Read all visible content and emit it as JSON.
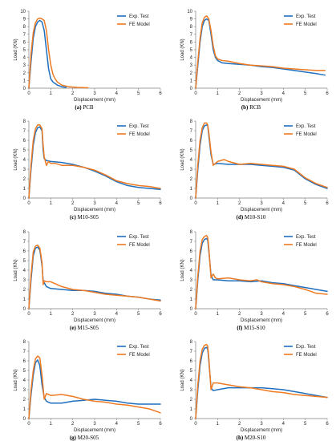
{
  "colors": {
    "exp": "#1f6fbf",
    "fe": "#ee7a22",
    "axis": "#7f7f7f",
    "text": "#222222"
  },
  "chart_data": [
    {
      "type": "line",
      "caption_tag": "(a)",
      "caption_name": "PCB",
      "xlabel": "Displacement (mm)",
      "ylabel": "Load (KN)",
      "xlim": [
        0,
        6
      ],
      "ylim": [
        0,
        10
      ],
      "xticks": [
        0,
        1,
        2,
        3,
        4,
        5,
        6
      ],
      "yticks": [
        0,
        1,
        2,
        3,
        4,
        5,
        6,
        7,
        8,
        9,
        10
      ],
      "legend": "top-right",
      "series": [
        {
          "name": "Exp. Test",
          "x": [
            0,
            0.1,
            0.2,
            0.3,
            0.4,
            0.5,
            0.6,
            0.7,
            0.8,
            0.9,
            1.0,
            1.1,
            1.2,
            1.3,
            1.5,
            1.7
          ],
          "y": [
            0,
            3.5,
            6.5,
            8.0,
            8.6,
            8.8,
            8.6,
            7.5,
            5.0,
            2.5,
            1.2,
            0.8,
            0.6,
            0.4,
            0.2,
            0.1
          ]
        },
        {
          "name": "FE Model",
          "x": [
            0,
            0.1,
            0.2,
            0.3,
            0.4,
            0.5,
            0.6,
            0.7,
            0.8,
            0.9,
            1.0,
            1.1,
            1.2,
            1.3,
            1.5,
            1.8,
            2.2,
            2.7
          ],
          "y": [
            0,
            4.5,
            7.2,
            8.5,
            9.0,
            9.1,
            9.0,
            8.8,
            7.5,
            5.0,
            3.0,
            1.8,
            1.2,
            0.8,
            0.4,
            0.2,
            0.1,
            0.05
          ]
        }
      ]
    },
    {
      "type": "line",
      "caption_tag": "(b)",
      "caption_name": "RCB",
      "xlabel": "Displacement (mm)",
      "ylabel": "Load (KN)",
      "xlim": [
        0,
        6
      ],
      "ylim": [
        0,
        10
      ],
      "xticks": [
        0,
        1,
        2,
        3,
        4,
        5,
        6
      ],
      "yticks": [
        0,
        1,
        2,
        3,
        4,
        5,
        6,
        7,
        8,
        9,
        10
      ],
      "legend": "top-right",
      "series": [
        {
          "name": "Exp. Test",
          "x": [
            0,
            0.1,
            0.2,
            0.3,
            0.4,
            0.5,
            0.6,
            0.7,
            0.8,
            0.9,
            1.0,
            1.2,
            1.5,
            2.0,
            2.5,
            3.0,
            3.5,
            4.0,
            4.5,
            5.0,
            5.5,
            5.9
          ],
          "y": [
            0,
            3.0,
            6.0,
            8.0,
            8.8,
            9.0,
            8.8,
            7.0,
            5.0,
            4.0,
            3.6,
            3.3,
            3.2,
            3.1,
            3.0,
            2.8,
            2.7,
            2.5,
            2.3,
            2.1,
            1.9,
            1.7
          ]
        },
        {
          "name": "FE Model",
          "x": [
            0,
            0.1,
            0.2,
            0.3,
            0.4,
            0.5,
            0.6,
            0.7,
            0.8,
            0.9,
            1.0,
            1.2,
            1.5,
            2.0,
            2.5,
            3.0,
            3.5,
            4.0,
            4.5,
            5.0,
            5.5,
            5.9
          ],
          "y": [
            0,
            3.5,
            6.5,
            8.5,
            9.2,
            9.4,
            9.0,
            7.5,
            5.5,
            4.2,
            3.8,
            3.6,
            3.5,
            3.2,
            3.0,
            2.9,
            2.8,
            2.6,
            2.5,
            2.4,
            2.3,
            2.3
          ]
        }
      ]
    },
    {
      "type": "line",
      "caption_tag": "(c)",
      "caption_name": "M10-S05",
      "xlabel": "Displacement (mm)",
      "ylabel": "Load (KN)",
      "xlim": [
        0,
        6
      ],
      "ylim": [
        0,
        8
      ],
      "xticks": [
        0,
        1,
        2,
        3,
        4,
        5,
        6
      ],
      "yticks": [
        0,
        1,
        2,
        3,
        4,
        5,
        6,
        7,
        8
      ],
      "legend": "top-right",
      "series": [
        {
          "name": "Exp. Test",
          "x": [
            0,
            0.1,
            0.2,
            0.3,
            0.4,
            0.5,
            0.6,
            0.65,
            0.7,
            0.8,
            1.0,
            1.5,
            2.0,
            2.5,
            3.0,
            3.5,
            4.0,
            4.5,
            5.0,
            5.5,
            6.0
          ],
          "y": [
            0,
            3.0,
            5.5,
            6.8,
            7.3,
            7.4,
            7.0,
            5.0,
            4.1,
            3.9,
            3.8,
            3.7,
            3.5,
            3.2,
            2.8,
            2.3,
            1.7,
            1.3,
            1.1,
            1.0,
            0.9
          ]
        },
        {
          "name": "FE Model",
          "x": [
            0,
            0.1,
            0.2,
            0.3,
            0.4,
            0.5,
            0.6,
            0.65,
            0.7,
            0.8,
            0.9,
            1.0,
            1.2,
            1.5,
            2.0,
            2.5,
            3.0,
            3.5,
            4.0,
            4.5,
            5.0,
            5.5,
            6.0
          ],
          "y": [
            0,
            3.5,
            6.0,
            7.2,
            7.6,
            7.6,
            7.2,
            5.5,
            4.3,
            3.4,
            3.8,
            3.6,
            3.6,
            3.4,
            3.4,
            3.2,
            2.9,
            2.4,
            1.8,
            1.5,
            1.3,
            1.2,
            1.0
          ]
        }
      ]
    },
    {
      "type": "line",
      "caption_tag": "(d)",
      "caption_name": "M10-S10",
      "xlabel": "Displacement (mm)",
      "ylabel": "Load (KN)",
      "xlim": [
        0,
        6
      ],
      "ylim": [
        0,
        8
      ],
      "xticks": [
        0,
        1,
        2,
        3,
        4,
        5,
        6
      ],
      "yticks": [
        0,
        1,
        2,
        3,
        4,
        5,
        6,
        7,
        8
      ],
      "legend": "top-right",
      "series": [
        {
          "name": "Exp. Test",
          "x": [
            0,
            0.1,
            0.2,
            0.3,
            0.4,
            0.5,
            0.55,
            0.6,
            0.7,
            0.8,
            1.0,
            1.5,
            2.0,
            2.5,
            3.0,
            3.5,
            4.0,
            4.5,
            5.0,
            5.5,
            6.0
          ],
          "y": [
            0,
            3.0,
            5.5,
            7.0,
            7.5,
            7.6,
            7.5,
            6.5,
            4.5,
            3.5,
            3.6,
            3.5,
            3.5,
            3.5,
            3.4,
            3.3,
            3.2,
            2.9,
            2.0,
            1.4,
            1.0
          ]
        },
        {
          "name": "FE Model",
          "x": [
            0,
            0.1,
            0.2,
            0.3,
            0.4,
            0.5,
            0.55,
            0.6,
            0.7,
            0.8,
            1.0,
            1.3,
            1.5,
            2.0,
            2.5,
            3.0,
            3.5,
            4.0,
            4.5,
            5.0,
            5.5,
            6.0
          ],
          "y": [
            0,
            3.5,
            6.0,
            7.3,
            7.8,
            7.8,
            7.6,
            6.8,
            4.8,
            3.4,
            3.8,
            4.0,
            3.8,
            3.5,
            3.6,
            3.5,
            3.4,
            3.3,
            3.0,
            2.1,
            1.5,
            1.1
          ]
        }
      ]
    },
    {
      "type": "line",
      "caption_tag": "(e)",
      "caption_name": "M15-S05",
      "xlabel": "Displacement (mm)",
      "ylabel": "Load (KN)",
      "xlim": [
        0,
        6
      ],
      "ylim": [
        0,
        8
      ],
      "xticks": [
        0,
        1,
        2,
        3,
        4,
        5,
        6
      ],
      "yticks": [
        0,
        1,
        2,
        3,
        4,
        5,
        6,
        7,
        8
      ],
      "legend": "top-right",
      "series": [
        {
          "name": "Exp. Test",
          "x": [
            0,
            0.1,
            0.2,
            0.3,
            0.4,
            0.5,
            0.6,
            0.65,
            0.7,
            0.8,
            1.0,
            1.5,
            2.0,
            2.5,
            3.0,
            3.5,
            4.0,
            4.5,
            5.0,
            5.5,
            6.0
          ],
          "y": [
            0,
            3.0,
            5.5,
            6.3,
            6.4,
            6.1,
            4.5,
            3.0,
            2.7,
            2.3,
            2.1,
            2.0,
            1.9,
            1.9,
            1.8,
            1.6,
            1.5,
            1.3,
            1.2,
            1.0,
            0.9
          ]
        },
        {
          "name": "FE Model",
          "x": [
            0,
            0.1,
            0.2,
            0.3,
            0.4,
            0.5,
            0.6,
            0.65,
            0.7,
            0.8,
            1.0,
            1.5,
            2.0,
            2.5,
            3.0,
            3.5,
            4.0,
            4.5,
            5.0,
            5.5,
            6.0
          ],
          "y": [
            0,
            3.5,
            5.9,
            6.5,
            6.6,
            6.3,
            4.8,
            2.5,
            2.9,
            2.8,
            2.8,
            2.3,
            2.0,
            1.9,
            1.7,
            1.5,
            1.4,
            1.3,
            1.2,
            1.0,
            0.8
          ]
        }
      ]
    },
    {
      "type": "line",
      "caption_tag": "(f)",
      "caption_name": "M15-S10",
      "xlabel": "Displacement (mm)",
      "ylabel": "Load (KN)",
      "xlim": [
        0,
        6
      ],
      "ylim": [
        0,
        8
      ],
      "xticks": [
        0,
        1,
        2,
        3,
        4,
        5,
        6
      ],
      "yticks": [
        0,
        1,
        2,
        3,
        4,
        5,
        6,
        7,
        8
      ],
      "legend": "top-right",
      "series": [
        {
          "name": "Exp. Test",
          "x": [
            0,
            0.1,
            0.2,
            0.3,
            0.4,
            0.5,
            0.55,
            0.6,
            0.7,
            0.8,
            1.0,
            1.5,
            2.0,
            2.5,
            3.0,
            3.5,
            4.0,
            4.5,
            5.0,
            5.5,
            6.0
          ],
          "y": [
            0,
            3.0,
            5.5,
            6.8,
            7.2,
            7.3,
            7.1,
            6.0,
            3.5,
            3.0,
            3.0,
            2.9,
            2.9,
            2.8,
            2.9,
            2.7,
            2.6,
            2.4,
            2.2,
            2.0,
            1.8
          ]
        },
        {
          "name": "FE Model",
          "x": [
            0,
            0.1,
            0.2,
            0.3,
            0.4,
            0.5,
            0.55,
            0.6,
            0.7,
            0.8,
            0.9,
            1.0,
            1.5,
            2.0,
            2.5,
            2.8,
            3.0,
            3.5,
            4.0,
            4.5,
            5.0,
            5.5,
            6.0
          ],
          "y": [
            0,
            3.4,
            6.0,
            7.2,
            7.5,
            7.6,
            7.4,
            6.3,
            3.2,
            3.6,
            3.2,
            3.1,
            3.2,
            3.0,
            2.9,
            3.0,
            2.8,
            2.6,
            2.5,
            2.3,
            2.0,
            1.6,
            1.5
          ]
        }
      ]
    },
    {
      "type": "line",
      "caption_tag": "(g)",
      "caption_name": "M20-S05",
      "xlabel": "Displacement (mm)",
      "ylabel": "Load (KN)",
      "xlim": [
        0,
        6
      ],
      "ylim": [
        0,
        8
      ],
      "xticks": [
        0,
        1,
        2,
        3,
        4,
        5,
        6
      ],
      "yticks": [
        0,
        1,
        2,
        3,
        4,
        5,
        6,
        7,
        8
      ],
      "legend": "top-right",
      "series": [
        {
          "name": "Exp. Test",
          "x": [
            0,
            0.1,
            0.2,
            0.3,
            0.4,
            0.5,
            0.6,
            0.7,
            0.8,
            1.0,
            1.5,
            2.0,
            2.5,
            3.0,
            3.5,
            4.0,
            4.5,
            5.0,
            5.5,
            6.0
          ],
          "y": [
            0,
            2.5,
            4.5,
            5.8,
            6.1,
            5.5,
            3.5,
            2.2,
            1.8,
            1.6,
            1.6,
            1.8,
            1.9,
            2.0,
            1.9,
            1.8,
            1.6,
            1.5,
            1.5,
            1.5
          ]
        },
        {
          "name": "FE Model",
          "x": [
            0,
            0.1,
            0.2,
            0.3,
            0.4,
            0.5,
            0.6,
            0.7,
            0.8,
            1.0,
            1.5,
            2.0,
            2.5,
            3.0,
            3.5,
            4.0,
            4.5,
            5.0,
            5.5,
            6.0
          ],
          "y": [
            0,
            3.0,
            5.0,
            6.2,
            6.5,
            6.3,
            4.5,
            2.0,
            2.6,
            2.4,
            2.5,
            2.3,
            2.0,
            1.8,
            1.7,
            1.5,
            1.4,
            1.2,
            1.0,
            0.6
          ]
        }
      ]
    },
    {
      "type": "line",
      "caption_tag": "(h)",
      "caption_name": "M20-S10",
      "xlabel": "Displacement (mm)",
      "ylabel": "Load (KN)",
      "xlim": [
        0,
        6
      ],
      "ylim": [
        0,
        8
      ],
      "xticks": [
        0,
        1,
        2,
        3,
        4,
        5,
        6
      ],
      "yticks": [
        0,
        1,
        2,
        3,
        4,
        5,
        6,
        7,
        8
      ],
      "legend": "top-right",
      "series": [
        {
          "name": "Exp. Test",
          "x": [
            0,
            0.1,
            0.2,
            0.3,
            0.4,
            0.5,
            0.55,
            0.6,
            0.7,
            0.8,
            1.0,
            1.5,
            2.0,
            2.5,
            3.0,
            3.5,
            4.0,
            4.5,
            5.0,
            5.5,
            6.0
          ],
          "y": [
            0,
            3.0,
            5.5,
            6.8,
            7.3,
            7.4,
            7.2,
            6.0,
            3.2,
            2.9,
            3.0,
            3.2,
            3.2,
            3.2,
            3.2,
            3.1,
            3.0,
            2.8,
            2.6,
            2.4,
            2.2
          ]
        },
        {
          "name": "FE Model",
          "x": [
            0,
            0.1,
            0.2,
            0.3,
            0.4,
            0.5,
            0.55,
            0.6,
            0.7,
            0.8,
            1.0,
            1.5,
            2.0,
            2.5,
            3.0,
            3.5,
            4.0,
            4.5,
            5.0,
            5.5,
            6.0
          ],
          "y": [
            0,
            3.5,
            6.0,
            7.2,
            7.6,
            7.7,
            7.5,
            6.3,
            3.0,
            3.7,
            3.7,
            3.5,
            3.3,
            3.2,
            3.0,
            2.8,
            2.7,
            2.5,
            2.4,
            2.3,
            2.2
          ]
        }
      ]
    }
  ]
}
